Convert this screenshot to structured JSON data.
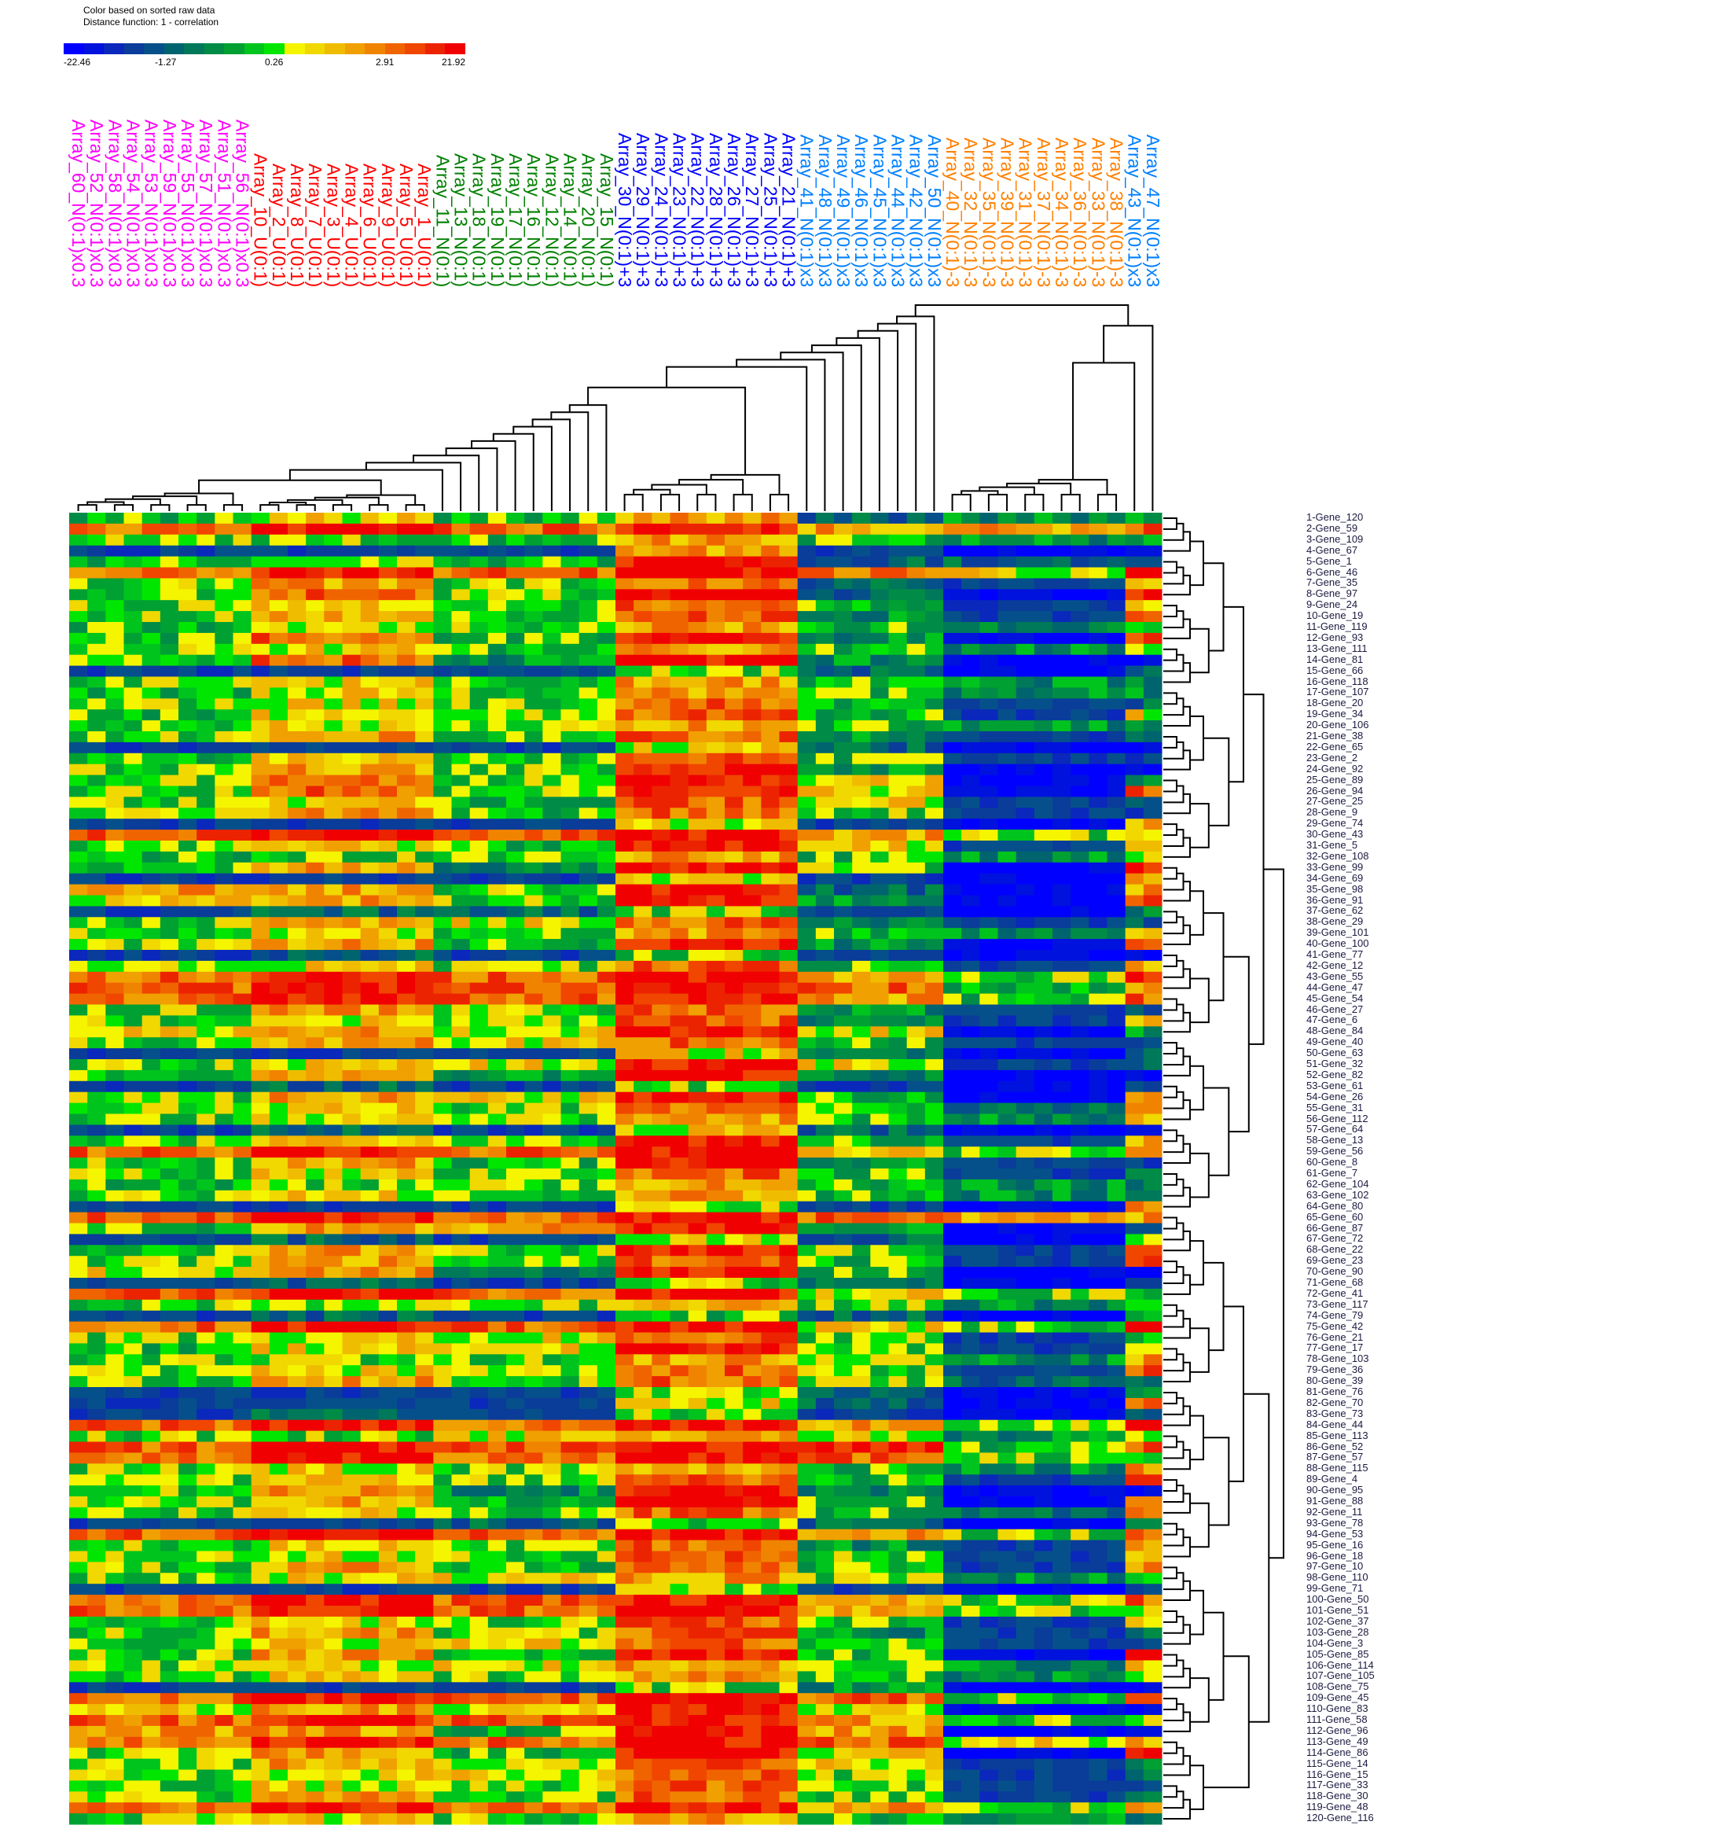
{
  "legend": {
    "line1": "Color based on sorted raw data",
    "line2": "Distance function: 1 - correlation",
    "ticks": [
      "-22.46",
      "-1.27",
      "0.26",
      "2.91",
      "21.92"
    ],
    "colors": [
      "#0000ff",
      "#0012dd",
      "#0a28bb",
      "#0a3c9a",
      "#05508a",
      "#00646e",
      "#00785a",
      "#008c46",
      "#00a032",
      "#00c41e",
      "#00e600",
      "#f5f500",
      "#f0d800",
      "#f0bc00",
      "#f0a000",
      "#f08400",
      "#f06400",
      "#f04600",
      "#ec2300",
      "#f00000"
    ]
  },
  "chart_data": {
    "type": "heatmap",
    "title": "Color based on sorted raw data",
    "subtitle": "Distance function: 1 - correlation",
    "color_scale": {
      "min": -22.46,
      "max": 21.92,
      "ticks": [
        -22.46,
        -1.27,
        0.26,
        2.91,
        21.92
      ]
    },
    "column_groups": [
      {
        "color": "#ff00ff",
        "columns": [
          "Array_60_N(0:1)x0.3",
          "Array_52_N(0:1)x0.3",
          "Array_58_N(0:1)x0.3",
          "Array_54_N(0:1)x0.3",
          "Array_53_N(0:1)x0.3",
          "Array_59_N(0:1)x0.3",
          "Array_55_N(0:1)x0.3",
          "Array_57_N(0:1)x0.3",
          "Array_51_N(0:1)x0.3",
          "Array_56_N(0:1)x0.3"
        ]
      },
      {
        "color": "#ff0000",
        "columns": [
          "Array_10_U(0:1)",
          "Array_2_U(0:1)",
          "Array_8_U(0:1)",
          "Array_7_U(0:1)",
          "Array_3_U(0:1)",
          "Array_4_U(0:1)",
          "Array_6_U(0:1)",
          "Array_9_U(0:1)",
          "Array_5_U(0:1)",
          "Array_1_U(0:1)"
        ]
      },
      {
        "color": "#008000",
        "columns": [
          "Array_11_N(0:1)",
          "Array_13_N(0:1)",
          "Array_18_N(0:1)",
          "Array_19_N(0:1)",
          "Array_17_N(0:1)",
          "Array_16_N(0:1)",
          "Array_12_N(0:1)",
          "Array_14_N(0:1)",
          "Array_20_N(0:1)",
          "Array_15_N(0:1)"
        ]
      },
      {
        "color": "#0000ff",
        "columns": [
          "Array_30_N(0:1)+3",
          "Array_29_N(0:1)+3",
          "Array_24_N(0:1)+3",
          "Array_23_N(0:1)+3",
          "Array_22_N(0:1)+3",
          "Array_28_N(0:1)+3",
          "Array_26_N(0:1)+3",
          "Array_27_N(0:1)+3",
          "Array_25_N(0:1)+3",
          "Array_21_N(0:1)+3"
        ]
      },
      {
        "color": "#0080ff",
        "columns": [
          "Array_41_N(0:1)x3",
          "Array_48_N(0:1)x3",
          "Array_49_N(0:1)x3",
          "Array_46_N(0:1)x3",
          "Array_45_N(0:1)x3",
          "Array_44_N(0:1)x3",
          "Array_42_N(0:1)x3",
          "Array_50_N(0:1)x3"
        ]
      },
      {
        "color": "#ff8000",
        "columns": [
          "Array_40_N(0:1)-3",
          "Array_32_N(0:1)-3",
          "Array_35_N(0:1)-3",
          "Array_39_N(0:1)-3",
          "Array_31_N(0:1)-3",
          "Array_37_N(0:1)-3",
          "Array_34_N(0:1)-3",
          "Array_36_N(0:1)-3",
          "Array_33_N(0:1)-3",
          "Array_38_N(0:1)-3"
        ]
      },
      {
        "color": "#0080ff",
        "columns": [
          "Array_43_N(0:1)x3",
          "Array_47_N(0:1)x3"
        ]
      }
    ],
    "rows": [
      "1-Gene_120",
      "2-Gene_59",
      "3-Gene_109",
      "4-Gene_67",
      "5-Gene_1",
      "6-Gene_46",
      "7-Gene_35",
      "8-Gene_97",
      "9-Gene_24",
      "10-Gene_19",
      "11-Gene_119",
      "12-Gene_93",
      "13-Gene_111",
      "14-Gene_81",
      "15-Gene_66",
      "16-Gene_118",
      "17-Gene_107",
      "18-Gene_20",
      "19-Gene_34",
      "20-Gene_106",
      "21-Gene_38",
      "22-Gene_65",
      "23-Gene_2",
      "24-Gene_92",
      "25-Gene_89",
      "26-Gene_94",
      "27-Gene_25",
      "28-Gene_9",
      "29-Gene_74",
      "30-Gene_43",
      "31-Gene_5",
      "32-Gene_108",
      "33-Gene_99",
      "34-Gene_69",
      "35-Gene_98",
      "36-Gene_91",
      "37-Gene_62",
      "38-Gene_29",
      "39-Gene_101",
      "40-Gene_100",
      "41-Gene_77",
      "42-Gene_12",
      "43-Gene_55",
      "44-Gene_47",
      "45-Gene_54",
      "46-Gene_27",
      "47-Gene_6",
      "48-Gene_84",
      "49-Gene_40",
      "50-Gene_63",
      "51-Gene_32",
      "52-Gene_82",
      "53-Gene_61",
      "54-Gene_26",
      "55-Gene_31",
      "56-Gene_112",
      "57-Gene_64",
      "58-Gene_13",
      "59-Gene_56",
      "60-Gene_8",
      "61-Gene_7",
      "62-Gene_104",
      "63-Gene_102",
      "64-Gene_80",
      "65-Gene_60",
      "66-Gene_87",
      "67-Gene_72",
      "68-Gene_22",
      "69-Gene_23",
      "70-Gene_90",
      "71-Gene_68",
      "72-Gene_41",
      "73-Gene_117",
      "74-Gene_79",
      "75-Gene_42",
      "76-Gene_21",
      "77-Gene_17",
      "78-Gene_103",
      "79-Gene_36",
      "80-Gene_39",
      "81-Gene_76",
      "82-Gene_70",
      "83-Gene_73",
      "84-Gene_44",
      "85-Gene_113",
      "86-Gene_52",
      "87-Gene_57",
      "88-Gene_115",
      "89-Gene_4",
      "90-Gene_95",
      "91-Gene_88",
      "92-Gene_11",
      "93-Gene_78",
      "94-Gene_53",
      "95-Gene_16",
      "96-Gene_18",
      "97-Gene_10",
      "98-Gene_110",
      "99-Gene_71",
      "100-Gene_50",
      "101-Gene_51",
      "102-Gene_37",
      "103-Gene_28",
      "104-Gene_3",
      "105-Gene_85",
      "106-Gene_114",
      "107-Gene_105",
      "108-Gene_75",
      "109-Gene_45",
      "110-Gene_83",
      "111-Gene_58",
      "112-Gene_96",
      "113-Gene_49",
      "114-Gene_86",
      "115-Gene_14",
      "116-Gene_15",
      "117-Gene_33",
      "118-Gene_30",
      "119-Gene_48",
      "120-Gene_116"
    ],
    "row_group_levels": [
      "4647233",
      "8989778",
      "5547433",
      "1117100",
      "4649221",
      "8989869",
      "5758217",
      "4859209",
      "5658416",
      "5758318",
      "4657435",
      "4849308",
      "5647436",
      "4839300",
      "1115202",
      "5657433",
      "4657433",
      "5658412",
      "4658416",
      "5657433",
      "5748313",
      "1116200",
      "4648411",
      "5759300",
      "5859603",
      "5859608",
      "5648612",
      "5748511",
      "1116107",
      "8989756",
      "5649617",
      "4547436",
      "5739509",
      "1116107",
      "7759207",
      "6759308",
      "1225103",
      "5768312",
      "5657436",
      "5749308",
      "1215100",
      "5658417",
      "8989759",
      "8989847",
      "8989748",
      "5758312",
      "5658317",
      "6769603",
      "5768411",
      "1116302",
      "5669612",
      "5739300",
      "1215101",
      "5769408",
      "5658427",
      "5657436",
      "1216200",
      "5659417",
      "8989658",
      "5749311",
      "5658413",
      "4557433",
      "5657433",
      "1115108",
      "8989877",
      "4779301",
      "1216206",
      "5759519",
      "5758418",
      "6739400",
      "1215202",
      "8989655",
      "5557535",
      "1214205",
      "8989659",
      "5668515",
      "4669515",
      "5557537",
      "5658518",
      "5758522",
      "1115204",
      "1116208",
      "1215102",
      "8989759",
      "5567636",
      "8989948",
      "8989854",
      "5657437",
      "5658419",
      "5739300",
      "5749408",
      "5658427",
      "1125202",
      "8989758",
      "5658317",
      "5658517",
      "5748417",
      "5667535",
      "1115101",
      "8989758",
      "8989756",
      "5658416",
      "5758312",
      "5668411",
      "5749409",
      "5667536",
      "5657534",
      "1115300",
      "8989858",
      "6769600",
      "8989755",
      "7749700",
      "8989867",
      "5749609",
      "5758613",
      "5668512",
      "5658511",
      "5758512",
      "8989757",
      "5657432"
    ]
  }
}
